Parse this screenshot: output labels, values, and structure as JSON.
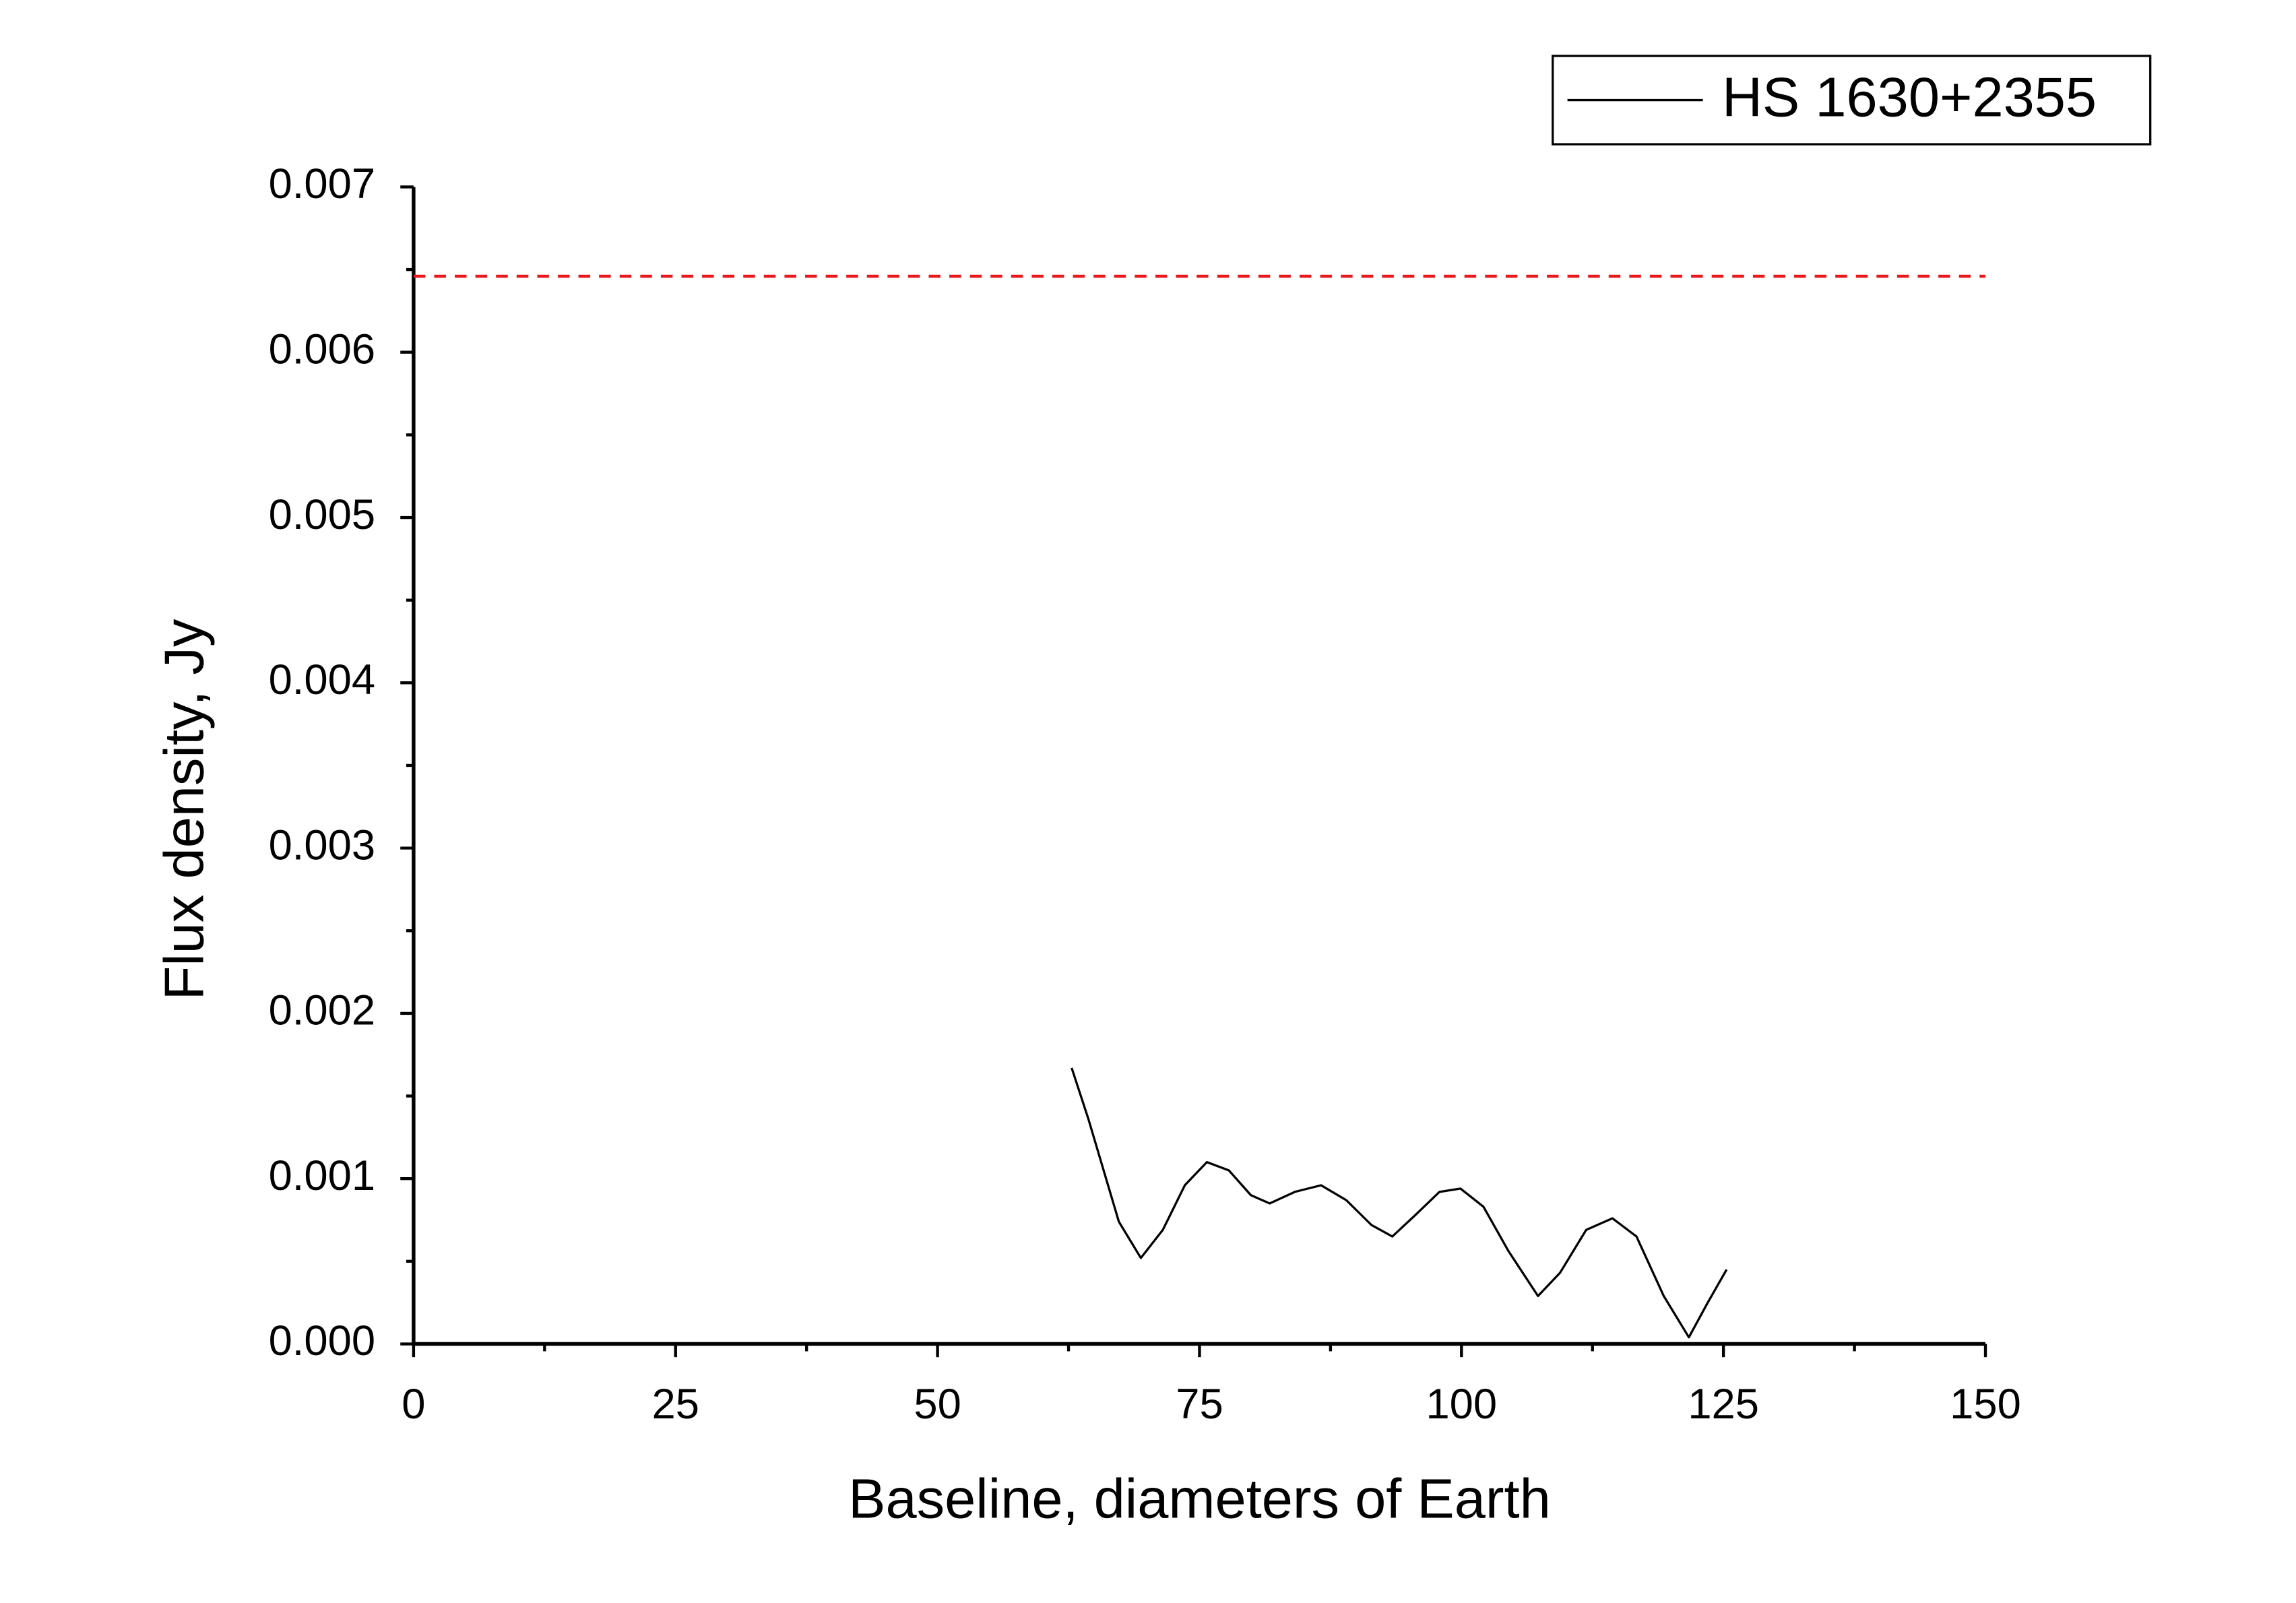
{
  "chart_data": {
    "type": "line",
    "x_label": "Baseline, diameters of Earth",
    "y_label": "Flux density, Jy",
    "xlim": [
      0,
      150
    ],
    "xticks": [
      0,
      25,
      50,
      75,
      100,
      125,
      150
    ],
    "ylim": [
      0,
      0.007
    ],
    "yticks": [
      {
        "value": 0,
        "label": "0.000"
      },
      {
        "value": 0.001,
        "label": "0.001"
      },
      {
        "value": 0.002,
        "label": "0.002"
      },
      {
        "value": 0.003,
        "label": "0.003"
      },
      {
        "value": 0.004,
        "label": "0.004"
      },
      {
        "value": 0.005,
        "label": "0.005"
      },
      {
        "value": 0.006,
        "label": "0.006"
      },
      {
        "value": 0.007,
        "label": "0.007"
      }
    ],
    "reference_line": {
      "value": 0.00646,
      "color": "#e8191c"
    },
    "legend_position": "top-right",
    "series": [
      {
        "name": "HS 1630+2355",
        "color": "#000000",
        "x": [
          62.8,
          64.4,
          67.3,
          69.4,
          71.5,
          73.6,
          75.7,
          77.8,
          79.9,
          81.7,
          84.1,
          86.6,
          89.0,
          91.4,
          93.4,
          95.6,
          97.9,
          99.9,
          102.1,
          104.5,
          107.3,
          109.4,
          111.9,
          114.4,
          116.7,
          119.3,
          121.7,
          123.5,
          125.3
        ],
        "values": [
          0.00167,
          0.00136,
          0.00074,
          0.00052,
          0.00069,
          0.00096,
          0.0011,
          0.00105,
          0.0009,
          0.00085,
          0.00092,
          0.00096,
          0.00087,
          0.00072,
          0.00065,
          0.00078,
          0.00092,
          0.00094,
          0.00083,
          0.00056,
          0.00029,
          0.00043,
          0.00069,
          0.00076,
          0.00065,
          0.00029,
          4e-05,
          0.00025,
          0.00045
        ]
      }
    ]
  }
}
